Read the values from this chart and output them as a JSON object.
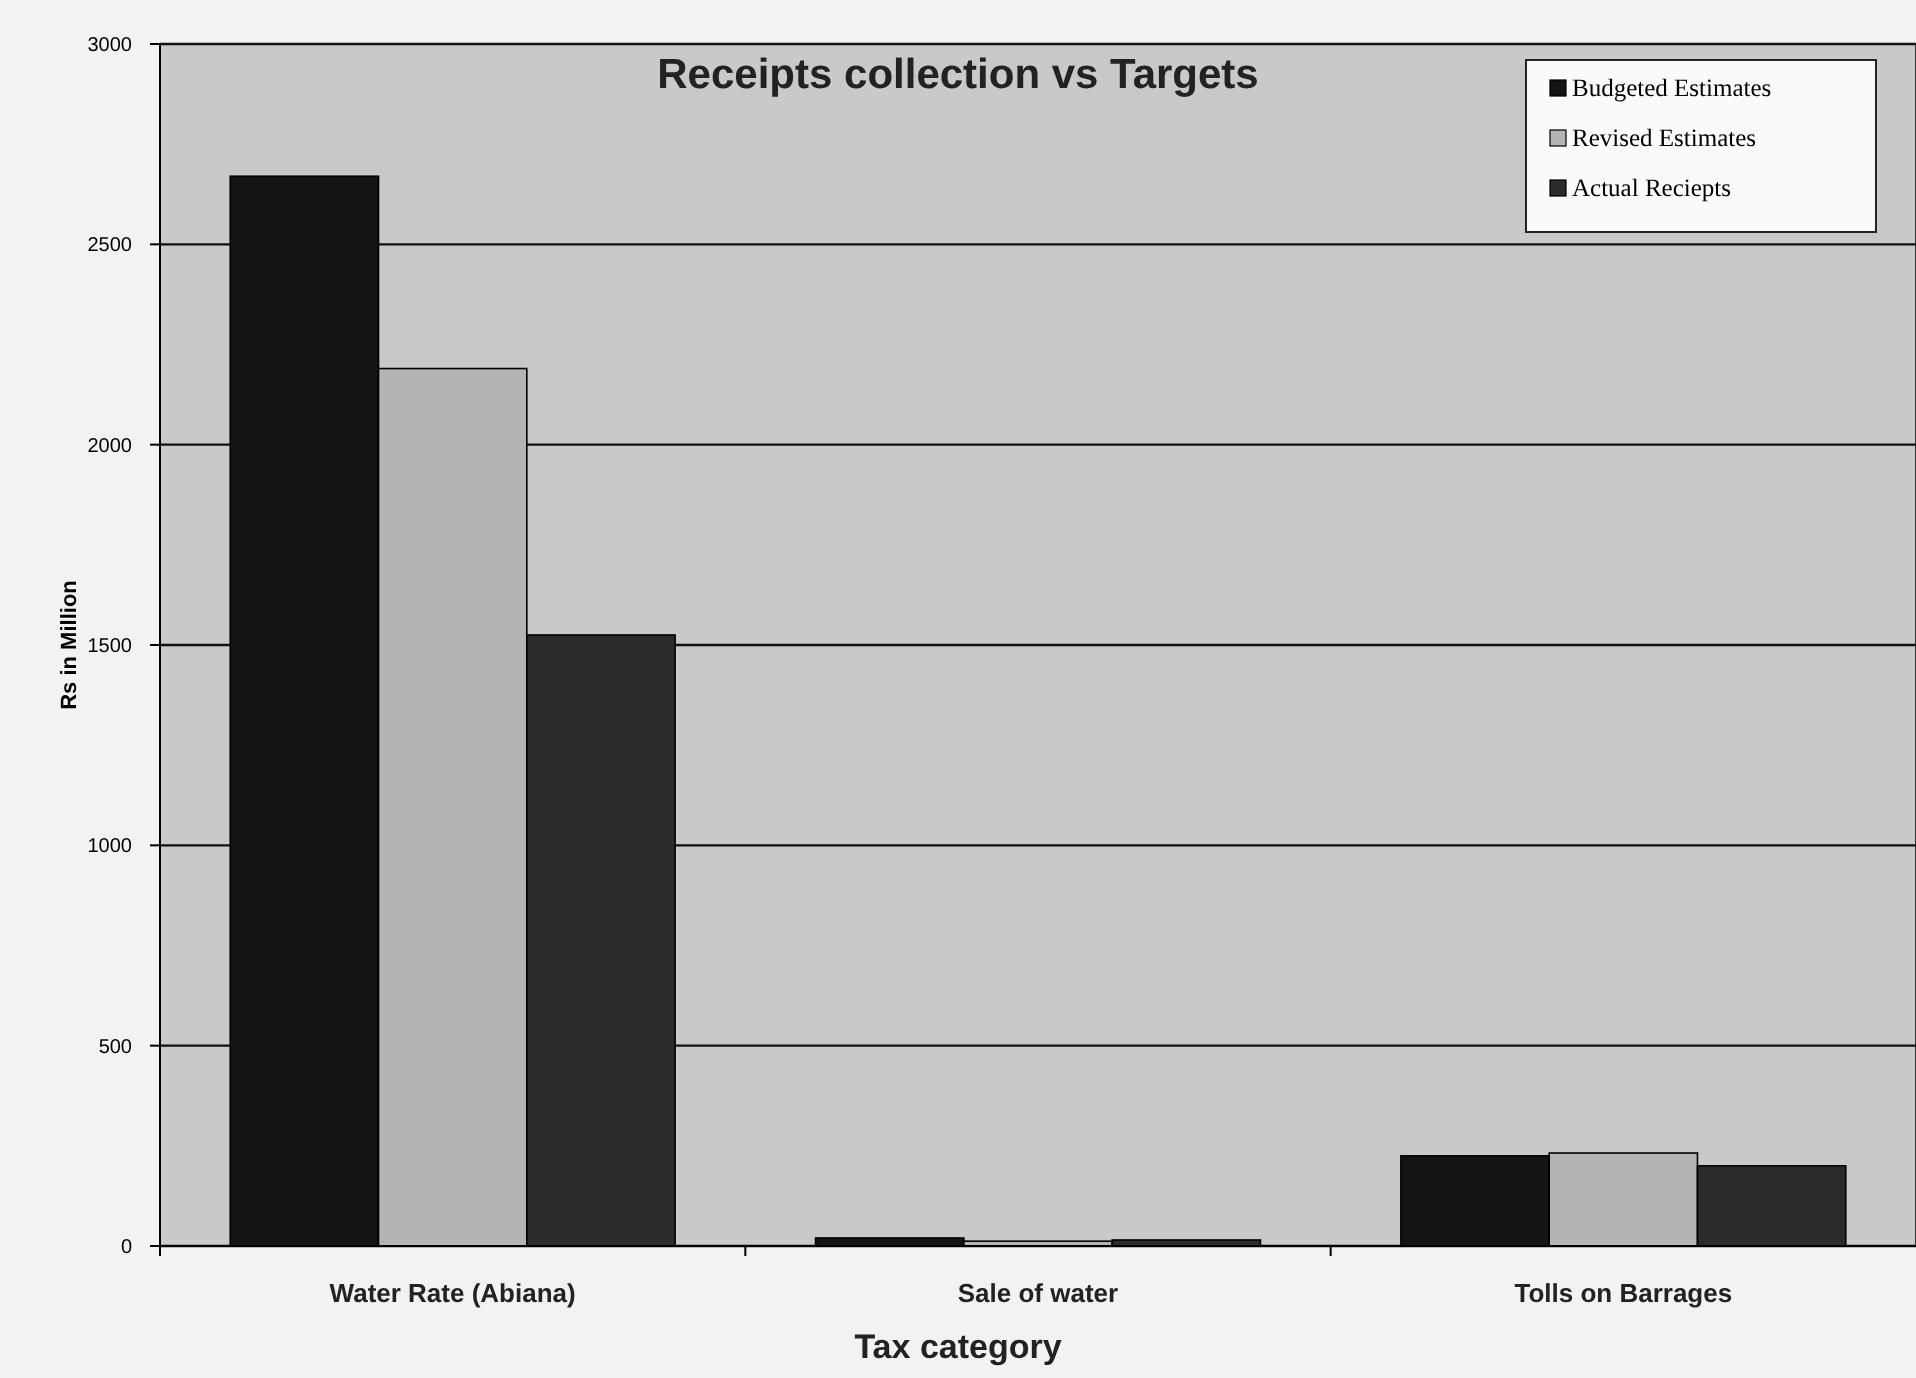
{
  "chart_data": {
    "type": "bar",
    "title": "Receipts collection vs Targets",
    "xlabel": "Tax category",
    "ylabel": "Rs in Million",
    "categories": [
      "Water Rate (Abiana)",
      "Sale of water",
      "Tolls on Barrages"
    ],
    "series": [
      {
        "name": "Budgeted Estimates",
        "color": "#141414",
        "values": [
          2670,
          20,
          225
        ]
      },
      {
        "name": "Revised Estimates",
        "color": "#b4b4b4",
        "values": [
          2190,
          12,
          232
        ]
      },
      {
        "name": "Actual Reciepts",
        "color": "#2c2c2c",
        "values": [
          1525,
          15,
          200
        ]
      }
    ],
    "ylim": [
      0,
      3000
    ],
    "yticks": [
      0,
      500,
      1000,
      1500,
      2000,
      2500,
      3000
    ],
    "grid": "y",
    "legend": "top right"
  }
}
